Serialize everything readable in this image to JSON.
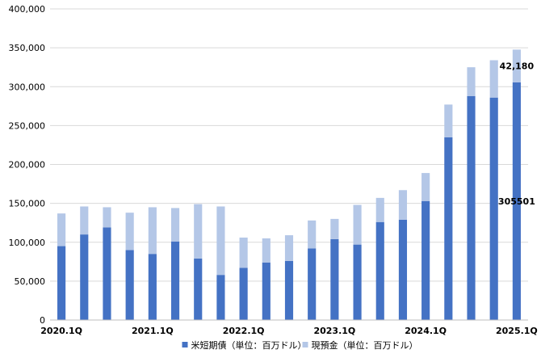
{
  "chart_data": {
    "type": "bar",
    "stacked": true,
    "categories": [
      "2020.1Q",
      "2020.2Q",
      "2020.3Q",
      "2020.4Q",
      "2021.1Q",
      "2021.2Q",
      "2021.3Q",
      "2021.4Q",
      "2022.1Q",
      "2022.2Q",
      "2022.3Q",
      "2022.4Q",
      "2023.1Q",
      "2023.2Q",
      "2023.3Q",
      "2023.4Q",
      "2024.1Q",
      "2024.2Q",
      "2024.3Q",
      "2024.4Q",
      "2025.1Q"
    ],
    "x_tick_labels": [
      "2020.1Q",
      "2021.1Q",
      "2022.1Q",
      "2023.1Q",
      "2024.1Q",
      "2025.1Q"
    ],
    "series": [
      {
        "name": "米短期債（単位：百万ドル）",
        "color": "#4472c4",
        "values": [
          95000,
          110000,
          119000,
          90000,
          85000,
          101000,
          79000,
          58000,
          67000,
          74000,
          76000,
          92000,
          104000,
          97000,
          126000,
          129000,
          153000,
          235000,
          288000,
          286000,
          305501
        ]
      },
      {
        "name": "現預金（単位：百万ドル）",
        "color": "#b4c7e7",
        "values": [
          42000,
          36000,
          26000,
          48000,
          60000,
          43000,
          70000,
          88000,
          39000,
          31000,
          33000,
          36000,
          26000,
          51000,
          31000,
          38000,
          36000,
          42000,
          37000,
          48000,
          42180
        ]
      }
    ],
    "data_labels": [
      {
        "series": 0,
        "index": 20,
        "text": "305501"
      },
      {
        "series": 1,
        "index": 20,
        "text": "42,180"
      }
    ],
    "y_tick_labels": [
      "0",
      "50,000",
      "100,000",
      "150,000",
      "200,000",
      "250,000",
      "300,000",
      "350,000",
      "400,000"
    ],
    "ylim": [
      0,
      400000
    ],
    "y_step": 50000,
    "grid": true,
    "legend_position": "bottom",
    "title": "",
    "xlabel": "",
    "ylabel": ""
  }
}
